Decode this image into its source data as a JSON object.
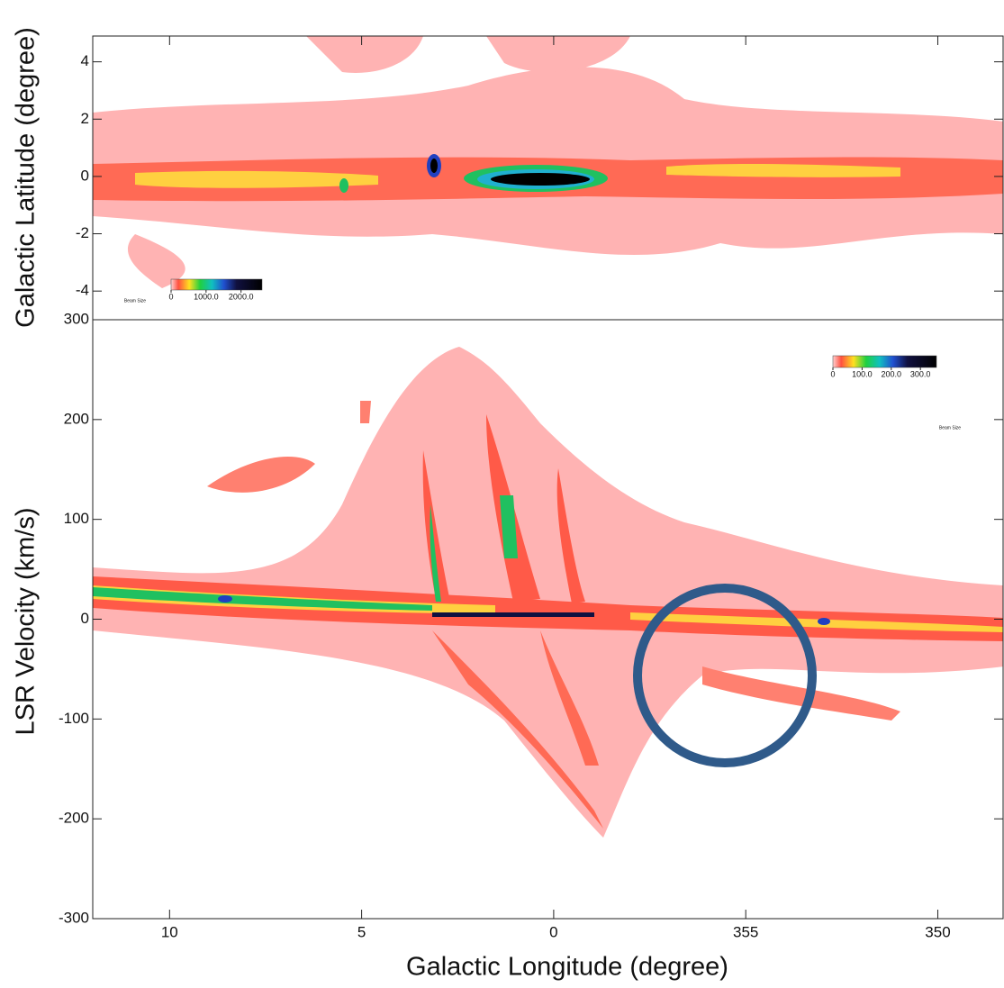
{
  "chart_data": [
    {
      "type": "image",
      "ylabel": "Galactic Latitude (degree)",
      "xlim": [
        12,
        -11.7
      ],
      "ylim": [
        -5,
        4.9
      ],
      "yticks": [
        -4,
        -2,
        0,
        2,
        4
      ],
      "colorbar": {
        "clim": [
          0,
          2600
        ],
        "ticks": [
          0,
          {
            "value": 1000,
            "label": "1000.0"
          },
          {
            "value": 2000,
            "label": "2000.0"
          }
        ]
      },
      "beam_label": "Beam Size"
    },
    {
      "type": "image",
      "ylabel": "LSR Velocity (km/s)",
      "xlabel": "Galactic Longitude (degree)",
      "xlim": [
        12,
        -11.7
      ],
      "ylim": [
        -300,
        300
      ],
      "yticks": [
        -300,
        -200,
        -100,
        0,
        100,
        200,
        300
      ],
      "xticks": [
        10,
        5,
        0,
        {
          "value": -5,
          "label": "355"
        },
        {
          "value": -10,
          "label": "350"
        }
      ],
      "colorbar": {
        "clim": [
          0,
          355
        ],
        "ticks": [
          0,
          {
            "value": 100,
            "label": "100.0"
          },
          {
            "value": 200,
            "label": "200.0"
          },
          {
            "value": 300,
            "label": "300.0"
          }
        ]
      },
      "beam_label": "Beam Size"
    }
  ]
}
